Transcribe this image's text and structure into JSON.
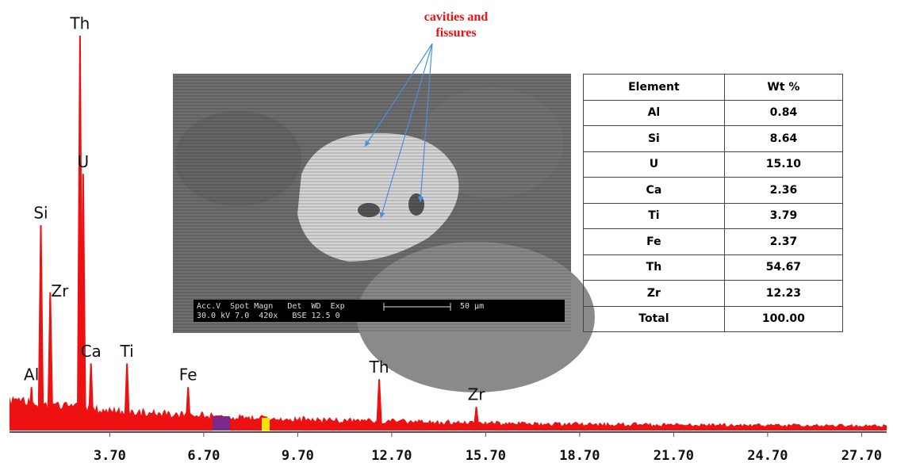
{
  "chart_data": {
    "type": "spectrum",
    "color": "#ee1111",
    "xlim": [
      0.5,
      28.5
    ],
    "xticks": [
      {
        "value": 3.7,
        "label": "3.70"
      },
      {
        "value": 6.7,
        "label": "6.70"
      },
      {
        "value": 9.7,
        "label": "9.70"
      },
      {
        "value": 12.7,
        "label": "12.70"
      },
      {
        "value": 15.7,
        "label": "15.70"
      },
      {
        "value": 18.7,
        "label": "18.70"
      },
      {
        "value": 21.7,
        "label": "21.70"
      },
      {
        "value": 24.7,
        "label": "24.70"
      },
      {
        "value": 27.7,
        "label": "27.70"
      }
    ],
    "ylim": [
      0,
      100
    ],
    "peaks": [
      {
        "label": "Al",
        "x": 1.2,
        "height": 11
      },
      {
        "label": "Si",
        "x": 1.5,
        "height": 52
      },
      {
        "label": "Zr",
        "x": 1.8,
        "height": 35
      },
      {
        "label": "Th",
        "x": 2.75,
        "height": 100
      },
      {
        "label": "U",
        "x": 2.85,
        "height": 65
      },
      {
        "label": "Ca",
        "x": 3.1,
        "height": 17
      },
      {
        "label": "Ti",
        "x": 4.25,
        "height": 17
      },
      {
        "label": "Fe",
        "x": 6.2,
        "height": 11
      },
      {
        "label": "Th",
        "x": 12.3,
        "height": 13
      },
      {
        "label": "Zr",
        "x": 15.4,
        "height": 6
      }
    ]
  },
  "image": {
    "annotation": "cavities and fissures",
    "info_header": "Acc.V  Spot Magn   Det  WD  Exp",
    "info_values": "30.0 kV 7.0  420x   BSE 12.5 0",
    "scale_bar": "50 µm"
  },
  "table": {
    "header": [
      "Element",
      "Wt %"
    ],
    "rows": [
      [
        "Al",
        "0.84"
      ],
      [
        "Si",
        "8.64"
      ],
      [
        "U",
        "15.10"
      ],
      [
        "Ca",
        "2.36"
      ],
      [
        "Ti",
        "3.79"
      ],
      [
        "Fe",
        "2.37"
      ],
      [
        "Th",
        "54.67"
      ],
      [
        "Zr",
        "12.23"
      ],
      [
        "Total",
        "100.00"
      ]
    ]
  }
}
